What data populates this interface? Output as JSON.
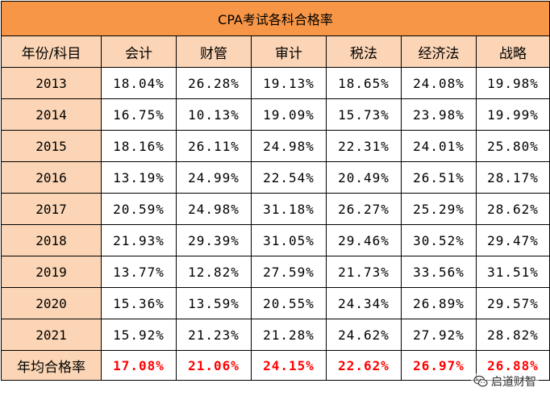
{
  "title": "CPA考试各科合格率",
  "header": {
    "corner": "年份/科目",
    "subjects": [
      "会计",
      "财管",
      "审计",
      "税法",
      "经济法",
      "战略"
    ]
  },
  "rows": [
    {
      "year": "2013",
      "values": [
        "18.04%",
        "26.28%",
        "19.13%",
        "18.65%",
        "24.08%",
        "19.98%"
      ]
    },
    {
      "year": "2014",
      "values": [
        "16.75%",
        "10.13%",
        "19.09%",
        "15.73%",
        "23.98%",
        "19.99%"
      ]
    },
    {
      "year": "2015",
      "values": [
        "18.16%",
        "26.11%",
        "24.98%",
        "22.31%",
        "24.01%",
        "25.80%"
      ]
    },
    {
      "year": "2016",
      "values": [
        "13.19%",
        "24.99%",
        "22.54%",
        "20.49%",
        "26.51%",
        "28.17%"
      ]
    },
    {
      "year": "2017",
      "values": [
        "20.59%",
        "24.98%",
        "31.18%",
        "26.27%",
        "25.29%",
        "28.62%"
      ]
    },
    {
      "year": "2018",
      "values": [
        "21.93%",
        "29.39%",
        "31.05%",
        "29.46%",
        "30.52%",
        "29.47%"
      ]
    },
    {
      "year": "2019",
      "values": [
        "13.77%",
        "12.82%",
        "27.59%",
        "21.73%",
        "33.56%",
        "31.51%"
      ]
    },
    {
      "year": "2020",
      "values": [
        "15.36%",
        "13.59%",
        "20.55%",
        "24.34%",
        "26.89%",
        "29.57%"
      ]
    },
    {
      "year": "2021",
      "values": [
        "15.92%",
        "21.23%",
        "21.28%",
        "24.62%",
        "27.92%",
        "28.82%"
      ]
    }
  ],
  "average": {
    "label": "年均合格率",
    "values": [
      "17.08%",
      "21.06%",
      "24.15%",
      "22.62%",
      "26.97%",
      "26.88%"
    ]
  },
  "watermark": {
    "text": "启道财智",
    "icon": "wechat-icon"
  },
  "colors": {
    "title_bg": "#f79646",
    "header_bg": "#fbd5b5",
    "highlight": "#ff0000"
  }
}
